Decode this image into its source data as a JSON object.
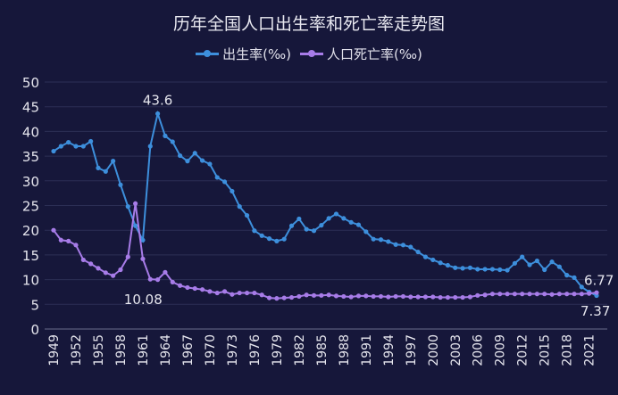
{
  "chart_data": {
    "type": "line",
    "title": "历年全国人口出生率和死亡率走势图",
    "legend_position": "top",
    "grid": true,
    "ylim": [
      0,
      50
    ],
    "yticks": [
      0,
      5,
      10,
      15,
      20,
      25,
      30,
      35,
      40,
      45,
      50
    ],
    "xticks": [
      1949,
      1952,
      1955,
      1958,
      1961,
      1964,
      1967,
      1970,
      1973,
      1976,
      1979,
      1982,
      1985,
      1988,
      1991,
      1994,
      1997,
      2000,
      2003,
      2006,
      2009,
      2012,
      2015,
      2018,
      2021
    ],
    "x": [
      1949,
      1950,
      1951,
      1952,
      1953,
      1954,
      1955,
      1956,
      1957,
      1958,
      1959,
      1960,
      1961,
      1962,
      1963,
      1964,
      1965,
      1966,
      1967,
      1968,
      1969,
      1970,
      1971,
      1972,
      1973,
      1974,
      1975,
      1976,
      1977,
      1978,
      1979,
      1980,
      1981,
      1982,
      1983,
      1984,
      1985,
      1986,
      1987,
      1988,
      1989,
      1990,
      1991,
      1992,
      1993,
      1994,
      1995,
      1996,
      1997,
      1998,
      1999,
      2000,
      2001,
      2002,
      2003,
      2004,
      2005,
      2006,
      2007,
      2008,
      2009,
      2010,
      2011,
      2012,
      2013,
      2014,
      2015,
      2016,
      2017,
      2018,
      2019,
      2020,
      2021,
      2022
    ],
    "series": [
      {
        "name": "出生率(‰)",
        "color": "#3d8fdc",
        "values": [
          36.0,
          37.0,
          37.8,
          37.0,
          37.0,
          38.0,
          32.6,
          31.9,
          34.0,
          29.2,
          24.8,
          20.9,
          18.0,
          37.0,
          43.6,
          39.1,
          37.9,
          35.1,
          34.0,
          35.6,
          34.1,
          33.4,
          30.7,
          29.8,
          27.9,
          24.8,
          23.0,
          19.9,
          18.9,
          18.3,
          17.8,
          18.2,
          20.9,
          22.3,
          20.2,
          19.9,
          21.0,
          22.4,
          23.3,
          22.4,
          21.6,
          21.1,
          19.7,
          18.2,
          18.1,
          17.7,
          17.1,
          17.0,
          16.6,
          15.6,
          14.6,
          14.0,
          13.4,
          12.9,
          12.4,
          12.3,
          12.4,
          12.1,
          12.1,
          12.1,
          12.0,
          11.9,
          13.3,
          14.6,
          13.0,
          13.8,
          12.0,
          13.6,
          12.6,
          10.9,
          10.4,
          8.5,
          7.5,
          6.77
        ]
      },
      {
        "name": "人口死亡率(‰)",
        "color": "#a77ce8",
        "values": [
          20.0,
          18.0,
          17.8,
          17.0,
          14.0,
          13.2,
          12.3,
          11.4,
          10.8,
          12.0,
          14.6,
          25.4,
          14.2,
          10.08,
          10.0,
          11.5,
          9.5,
          8.8,
          8.4,
          8.2,
          8.0,
          7.6,
          7.3,
          7.6,
          7.0,
          7.3,
          7.3,
          7.3,
          6.9,
          6.3,
          6.2,
          6.3,
          6.4,
          6.6,
          6.9,
          6.8,
          6.8,
          6.9,
          6.7,
          6.6,
          6.5,
          6.7,
          6.7,
          6.6,
          6.6,
          6.5,
          6.6,
          6.6,
          6.5,
          6.5,
          6.5,
          6.5,
          6.4,
          6.4,
          6.4,
          6.4,
          6.5,
          6.8,
          6.9,
          7.1,
          7.1,
          7.1,
          7.1,
          7.1,
          7.1,
          7.1,
          7.1,
          7.0,
          7.1,
          7.1,
          7.1,
          7.1,
          7.2,
          7.37
        ]
      }
    ],
    "annotations": [
      {
        "text": "43.6",
        "x": 1963,
        "series": 0
      },
      {
        "text": "10.08",
        "x": 1962,
        "series": 1
      },
      {
        "text": "6.77",
        "x": 2022,
        "series": 0
      },
      {
        "text": "7.37",
        "x": 2022,
        "series": 1
      }
    ]
  }
}
